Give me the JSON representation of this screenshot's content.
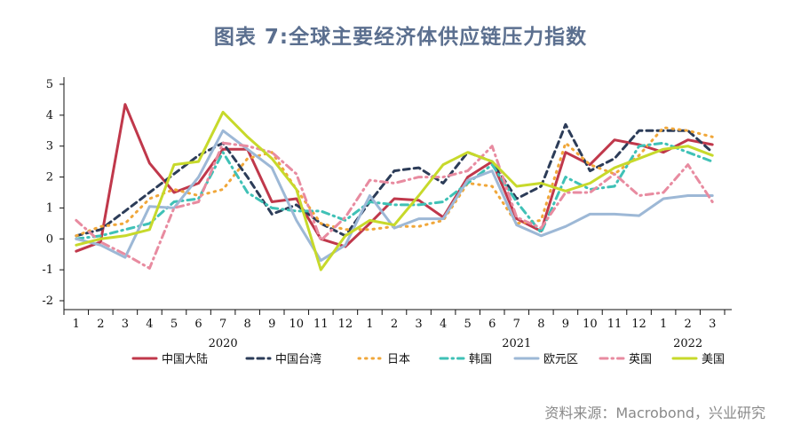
{
  "title": "图表 7:全球主要经济体供应链压力指数",
  "source": "资料来源：Macrobond，兴业研究",
  "chart_data": {
    "type": "line",
    "categories": [
      "2020-01",
      "2020-02",
      "2020-03",
      "2020-04",
      "2020-05",
      "2020-06",
      "2020-07",
      "2020-08",
      "2020-09",
      "2020-10",
      "2020-11",
      "2020-12",
      "2021-01",
      "2021-02",
      "2021-03",
      "2021-04",
      "2021-05",
      "2021-06",
      "2021-07",
      "2021-08",
      "2021-09",
      "2021-10",
      "2021-11",
      "2021-12",
      "2022-01",
      "2022-02",
      "2022-03"
    ],
    "x_tick_labels": [
      "1",
      "2",
      "3",
      "4",
      "5",
      "6",
      "7",
      "8",
      "9",
      "10",
      "11",
      "12",
      "1",
      "2",
      "3",
      "4",
      "5",
      "6",
      "7",
      "8",
      "9",
      "10",
      "11",
      "12",
      "1",
      "2",
      "3"
    ],
    "year_labels": [
      {
        "label": "2020",
        "at_index": 6
      },
      {
        "label": "2021",
        "at_index": 18
      },
      {
        "label": "2022",
        "at_index": 25
      }
    ],
    "ylim": [
      -2,
      5
    ],
    "y_ticks": [
      "-2",
      "-1",
      "0",
      "1",
      "2",
      "3",
      "4",
      "5"
    ],
    "grid": false,
    "legend_position": "bottom",
    "series": [
      {
        "name": "中国大陆",
        "color": "#c0384b",
        "dash": "solid",
        "values": [
          -0.4,
          -0.1,
          4.35,
          2.45,
          1.5,
          1.8,
          2.9,
          2.9,
          1.2,
          1.3,
          0.0,
          -0.25,
          0.5,
          1.3,
          1.25,
          0.7,
          2.0,
          2.5,
          0.65,
          0.25,
          2.8,
          2.4,
          3.2,
          3.05,
          2.8,
          3.2,
          3.05
        ]
      },
      {
        "name": "中国台湾",
        "color": "#2c3c58",
        "dash": "dashed",
        "values": [
          0.1,
          0.3,
          0.9,
          1.5,
          2.1,
          2.7,
          3.1,
          2.0,
          0.8,
          1.1,
          0.5,
          0.1,
          1.2,
          2.2,
          2.3,
          1.8,
          2.8,
          2.5,
          1.3,
          1.7,
          3.7,
          2.2,
          2.6,
          3.5,
          3.5,
          3.5,
          2.8
        ]
      },
      {
        "name": "日本",
        "color": "#f0a73a",
        "dash": "dotted",
        "values": [
          0.1,
          0.4,
          0.5,
          1.3,
          1.6,
          1.4,
          1.6,
          2.6,
          2.8,
          1.6,
          0.5,
          0.3,
          0.3,
          0.4,
          0.4,
          0.6,
          1.8,
          1.7,
          0.5,
          0.6,
          3.1,
          2.4,
          2.1,
          2.7,
          3.6,
          3.5,
          3.3
        ]
      },
      {
        "name": "韩国",
        "color": "#3fc1b6",
        "dash": "dashdot",
        "values": [
          0.0,
          0.1,
          0.3,
          0.5,
          1.2,
          1.3,
          2.8,
          1.5,
          1.0,
          0.9,
          0.9,
          0.6,
          1.2,
          1.1,
          1.1,
          1.2,
          1.8,
          2.4,
          1.2,
          0.2,
          2.0,
          1.6,
          1.7,
          3.0,
          3.1,
          2.8,
          2.5
        ]
      },
      {
        "name": "欧元区",
        "color": "#9db8d6",
        "dash": "solid",
        "values": [
          0.0,
          -0.2,
          -0.6,
          1.05,
          1.0,
          2.0,
          3.5,
          2.9,
          2.3,
          0.6,
          -0.7,
          -0.2,
          1.4,
          0.35,
          0.65,
          0.65,
          1.9,
          2.2,
          0.45,
          0.1,
          0.4,
          0.8,
          0.8,
          0.75,
          1.3,
          1.4,
          1.4
        ]
      },
      {
        "name": "英国",
        "color": "#e88ba0",
        "dash": "dashdot",
        "values": [
          0.6,
          -0.1,
          -0.5,
          -0.95,
          1.0,
          1.2,
          3.1,
          3.0,
          2.8,
          2.1,
          -0.05,
          0.7,
          1.9,
          1.8,
          2.0,
          2.0,
          2.2,
          3.0,
          0.7,
          0.35,
          1.5,
          1.5,
          2.1,
          1.4,
          1.5,
          2.4,
          1.2
        ]
      },
      {
        "name": "美国",
        "color": "#c7d92b",
        "dash": "solid",
        "values": [
          -0.2,
          0.0,
          0.1,
          0.3,
          2.4,
          2.5,
          4.1,
          3.3,
          2.6,
          1.6,
          -1.0,
          0.1,
          0.6,
          0.45,
          1.4,
          2.4,
          2.8,
          2.5,
          1.7,
          1.8,
          1.55,
          1.8,
          2.3,
          2.6,
          2.9,
          3.0,
          2.7
        ]
      }
    ]
  }
}
